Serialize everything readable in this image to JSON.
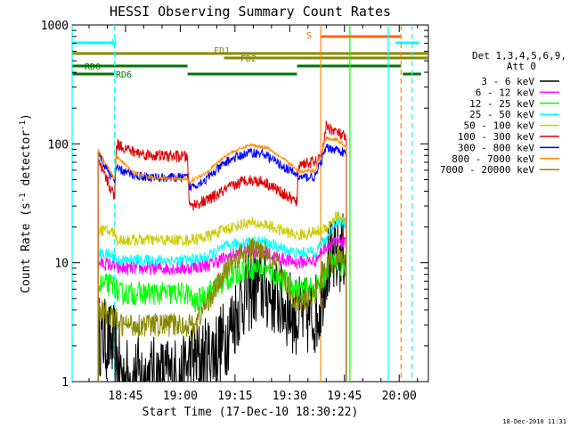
{
  "chart_data": {
    "type": "line",
    "title": "HESSI Observing Summary Count Rates",
    "xlabel": "Start Time (17-Dec-10 18:30:22)",
    "ylabel_main": "Count Rate (s",
    "ylabel_sup1": "-1",
    "ylabel_mid": " detector",
    "ylabel_sup2": "-1",
    "ylabel_end": ")",
    "date_stamp": "18-Dec-2010 11:31",
    "y_scale": "log",
    "ylim": [
      1,
      1000
    ],
    "xlim": [
      "18:30:22",
      "20:08:00"
    ],
    "x_ticks": [
      "18:45",
      "19:00",
      "19:15",
      "19:30",
      "19:45",
      "20:00"
    ],
    "y_ticks": [
      "1",
      "10",
      "100",
      "1000"
    ],
    "legend": {
      "header_line1": "Det 1,3,4,5,6,9,",
      "header_line2": "Att 0",
      "placement": "right",
      "entries": [
        {
          "label": "3 - 6 keV",
          "color": "#000000"
        },
        {
          "label": "6 - 12 keV",
          "color": "#ff00ff"
        },
        {
          "label": "12 - 25 keV",
          "color": "#00ff00"
        },
        {
          "label": "25 - 50 keV",
          "color": "#00ffff"
        },
        {
          "label": "50 - 100 keV",
          "color": "#cccc00"
        },
        {
          "label": "100 - 300 keV",
          "color": "#e00000"
        },
        {
          "label": "300 - 800 keV",
          "color": "#0000ff"
        },
        {
          "label": "800 - 7000 keV",
          "color": "#ff8800"
        },
        {
          "label": "7000 - 20000 keV",
          "color": "#888800"
        }
      ]
    },
    "flags": [
      {
        "label": "S",
        "color": "#ff6600",
        "segments": [
          [
            "19:38:30",
            "20:00:30"
          ]
        ]
      },
      {
        "label": "N",
        "color": "#00ffff",
        "segments": [
          [
            "18:30:22",
            "18:42:00"
          ],
          [
            "19:59:00",
            "20:05:30"
          ]
        ]
      },
      {
        "label": "FD1",
        "color": "#888800",
        "segments": [
          [
            "18:30:22",
            "20:08:00"
          ]
        ]
      },
      {
        "label": "FD2",
        "color": "#888800",
        "segments": [
          [
            "19:12:00",
            "20:08:00"
          ]
        ]
      },
      {
        "label": "RD0",
        "color": "#007700",
        "segments": [
          [
            "18:30:22",
            "19:02:00"
          ],
          [
            "19:32:00",
            "20:00:30"
          ]
        ]
      },
      {
        "label": "RD6",
        "color": "#007700",
        "segments": [
          [
            "18:30:22",
            "18:42:00"
          ],
          [
            "19:02:00",
            "19:32:00"
          ],
          [
            "20:01:00",
            "20:06:00"
          ]
        ]
      }
    ],
    "vertical_markers": [
      {
        "time": "18:30:22",
        "color": "#00ffff",
        "style": "solid"
      },
      {
        "time": "18:42:00",
        "color": "#00ffff",
        "style": "dashed"
      },
      {
        "time": "19:38:30",
        "color": "#ff8800",
        "style": "solid"
      },
      {
        "time": "19:46:30",
        "color": "#00ff00",
        "style": "solid"
      },
      {
        "time": "19:57:00",
        "color": "#00ffff",
        "style": "solid"
      },
      {
        "time": "20:00:30",
        "color": "#ff8800",
        "style": "dashed"
      },
      {
        "time": "20:03:30",
        "color": "#00ffff",
        "style": "dashed"
      }
    ],
    "series": [
      {
        "name": "3 - 6 keV",
        "color": "#000000",
        "noise": 0.35,
        "data": [
          [
            "18:37:30",
            2.5
          ],
          [
            "18:42:00",
            2.0
          ],
          [
            "18:43:00",
            1.3
          ],
          [
            "18:44:30",
            1.1
          ],
          [
            "19:01:00",
            1.1
          ],
          [
            "19:02:30",
            1.5
          ],
          [
            "19:07:00",
            1.6
          ],
          [
            "19:12:00",
            2.2
          ],
          [
            "19:17:00",
            5.0
          ],
          [
            "19:21:00",
            6.5
          ],
          [
            "19:25:00",
            5.5
          ],
          [
            "19:30:00",
            4.0
          ],
          [
            "19:32:00",
            3.5
          ],
          [
            "19:36:00",
            3.5
          ],
          [
            "19:38:00",
            4.0
          ],
          [
            "19:40:00",
            10
          ],
          [
            "19:43:00",
            11
          ],
          [
            "19:45:30",
            13
          ]
        ]
      },
      {
        "name": "6 - 12 keV",
        "color": "#ff00ff",
        "noise": 0.06,
        "data": [
          [
            "18:37:30",
            10
          ],
          [
            "18:42:00",
            9.5
          ],
          [
            "18:42:30",
            9.0
          ],
          [
            "19:02:00",
            9.0
          ],
          [
            "19:07:00",
            9.5
          ],
          [
            "19:14:00",
            11.5
          ],
          [
            "19:18:00",
            12.5
          ],
          [
            "19:22:00",
            12.5
          ],
          [
            "19:27:00",
            11.0
          ],
          [
            "19:32:00",
            10.0
          ],
          [
            "19:37:00",
            10.5
          ],
          [
            "19:40:00",
            14
          ],
          [
            "19:44:00",
            15
          ],
          [
            "19:45:30",
            14
          ]
        ]
      },
      {
        "name": "12 - 25 keV",
        "color": "#00ff00",
        "noise": 0.1,
        "data": [
          [
            "18:37:30",
            6.5
          ],
          [
            "18:42:00",
            6.5
          ],
          [
            "18:43:00",
            5.5
          ],
          [
            "19:02:00",
            5.5
          ],
          [
            "19:04:00",
            4.5
          ],
          [
            "19:07:00",
            5.5
          ],
          [
            "19:14:00",
            7.5
          ],
          [
            "19:18:00",
            9.0
          ],
          [
            "19:22:00",
            9.0
          ],
          [
            "19:27:00",
            7.5
          ],
          [
            "19:32:00",
            6.0
          ],
          [
            "19:37:00",
            6.0
          ],
          [
            "19:39:00",
            7.0
          ],
          [
            "19:41:00",
            10.0
          ],
          [
            "19:45:30",
            9.5
          ]
        ]
      },
      {
        "name": "25 - 50 keV",
        "color": "#00ffff",
        "noise": 0.05,
        "data": [
          [
            "18:37:30",
            12
          ],
          [
            "18:42:00",
            11.5
          ],
          [
            "18:42:30",
            10.5
          ],
          [
            "19:02:00",
            10.5
          ],
          [
            "19:07:00",
            11.0
          ],
          [
            "19:12:00",
            13.5
          ],
          [
            "19:18:00",
            15.0
          ],
          [
            "19:23:00",
            15.0
          ],
          [
            "19:27:00",
            13.5
          ],
          [
            "19:32:00",
            12.0
          ],
          [
            "19:37:00",
            12.5
          ],
          [
            "19:40:00",
            16.0
          ],
          [
            "19:43:00",
            23.0
          ],
          [
            "19:45:30",
            21.0
          ]
        ]
      },
      {
        "name": "50 - 100 keV",
        "color": "#cccc00",
        "noise": 0.05,
        "data": [
          [
            "18:37:30",
            19
          ],
          [
            "18:42:00",
            18
          ],
          [
            "18:42:30",
            15.5
          ],
          [
            "19:02:00",
            15.5
          ],
          [
            "19:07:00",
            16.5
          ],
          [
            "19:12:00",
            19.0
          ],
          [
            "19:18:00",
            21.5
          ],
          [
            "19:23:00",
            21.0
          ],
          [
            "19:27:00",
            19.0
          ],
          [
            "19:32:00",
            17.0
          ],
          [
            "19:37:00",
            18.0
          ],
          [
            "19:40:00",
            20.0
          ],
          [
            "19:43:00",
            25.0
          ],
          [
            "19:45:30",
            22.0
          ]
        ]
      },
      {
        "name": "100 - 300 keV",
        "color": "#e00000",
        "noise": 0.05,
        "data": [
          [
            "18:37:30",
            70
          ],
          [
            "18:42:00",
            36
          ],
          [
            "18:42:30",
            100
          ],
          [
            "18:47:00",
            86
          ],
          [
            "18:52:00",
            80
          ],
          [
            "19:02:00",
            78
          ],
          [
            "19:02:30",
            30
          ],
          [
            "19:07:00",
            33
          ],
          [
            "19:13:00",
            42
          ],
          [
            "19:18:00",
            50
          ],
          [
            "19:23:00",
            48
          ],
          [
            "19:29:00",
            37
          ],
          [
            "19:32:00",
            32
          ],
          [
            "19:32:30",
            68
          ],
          [
            "19:37:00",
            70
          ],
          [
            "19:38:30",
            75
          ],
          [
            "19:40:00",
            140
          ],
          [
            "19:43:00",
            125
          ],
          [
            "19:45:30",
            110
          ]
        ]
      },
      {
        "name": "300 - 800 keV",
        "color": "#0000ff",
        "noise": 0.04,
        "data": [
          [
            "18:37:30",
            82
          ],
          [
            "18:42:00",
            48
          ],
          [
            "18:42:30",
            62
          ],
          [
            "18:47:00",
            55
          ],
          [
            "18:52:00",
            52
          ],
          [
            "19:02:00",
            52
          ],
          [
            "19:02:30",
            43
          ],
          [
            "19:07:00",
            50
          ],
          [
            "19:13:00",
            72
          ],
          [
            "19:19:00",
            85
          ],
          [
            "19:23:00",
            82
          ],
          [
            "19:29:00",
            62
          ],
          [
            "19:32:00",
            55
          ],
          [
            "19:32:30",
            52
          ],
          [
            "19:37:00",
            53
          ],
          [
            "19:40:00",
            92
          ],
          [
            "19:43:00",
            90
          ],
          [
            "19:45:30",
            82
          ]
        ]
      },
      {
        "name": "800 - 7000 keV",
        "color": "#ff8800",
        "noise": 0.015,
        "data": [
          [
            "18:37:30",
            88
          ],
          [
            "18:42:00",
            50
          ],
          [
            "18:42:30",
            78
          ],
          [
            "18:47:00",
            58
          ],
          [
            "18:52:00",
            52
          ],
          [
            "19:02:00",
            50
          ],
          [
            "19:02:30",
            48
          ],
          [
            "19:07:00",
            57
          ],
          [
            "19:13:00",
            82
          ],
          [
            "19:19:00",
            98
          ],
          [
            "19:24:00",
            93
          ],
          [
            "19:29:00",
            72
          ],
          [
            "19:32:00",
            60
          ],
          [
            "19:32:30",
            58
          ],
          [
            "19:37:00",
            60
          ],
          [
            "19:40:00",
            112
          ],
          [
            "19:43:00",
            108
          ],
          [
            "19:45:30",
            95
          ]
        ]
      },
      {
        "name": "7000 - 20000 keV",
        "color": "#888800",
        "noise": 0.1,
        "data": [
          [
            "18:37:30",
            4.0
          ],
          [
            "18:42:00",
            3.5
          ],
          [
            "18:43:00",
            3.0
          ],
          [
            "19:02:00",
            3.0
          ],
          [
            "19:04:00",
            3.0
          ],
          [
            "19:08:00",
            5.0
          ],
          [
            "19:14:00",
            10.0
          ],
          [
            "19:19:00",
            13.0
          ],
          [
            "19:23:00",
            13.0
          ],
          [
            "19:27:00",
            9.0
          ],
          [
            "19:31:00",
            5.0
          ],
          [
            "19:33:00",
            4.5
          ],
          [
            "19:37:00",
            5.5
          ],
          [
            "19:40:00",
            9.0
          ],
          [
            "19:43:00",
            11.0
          ],
          [
            "19:45:30",
            11.0
          ]
        ]
      }
    ]
  }
}
